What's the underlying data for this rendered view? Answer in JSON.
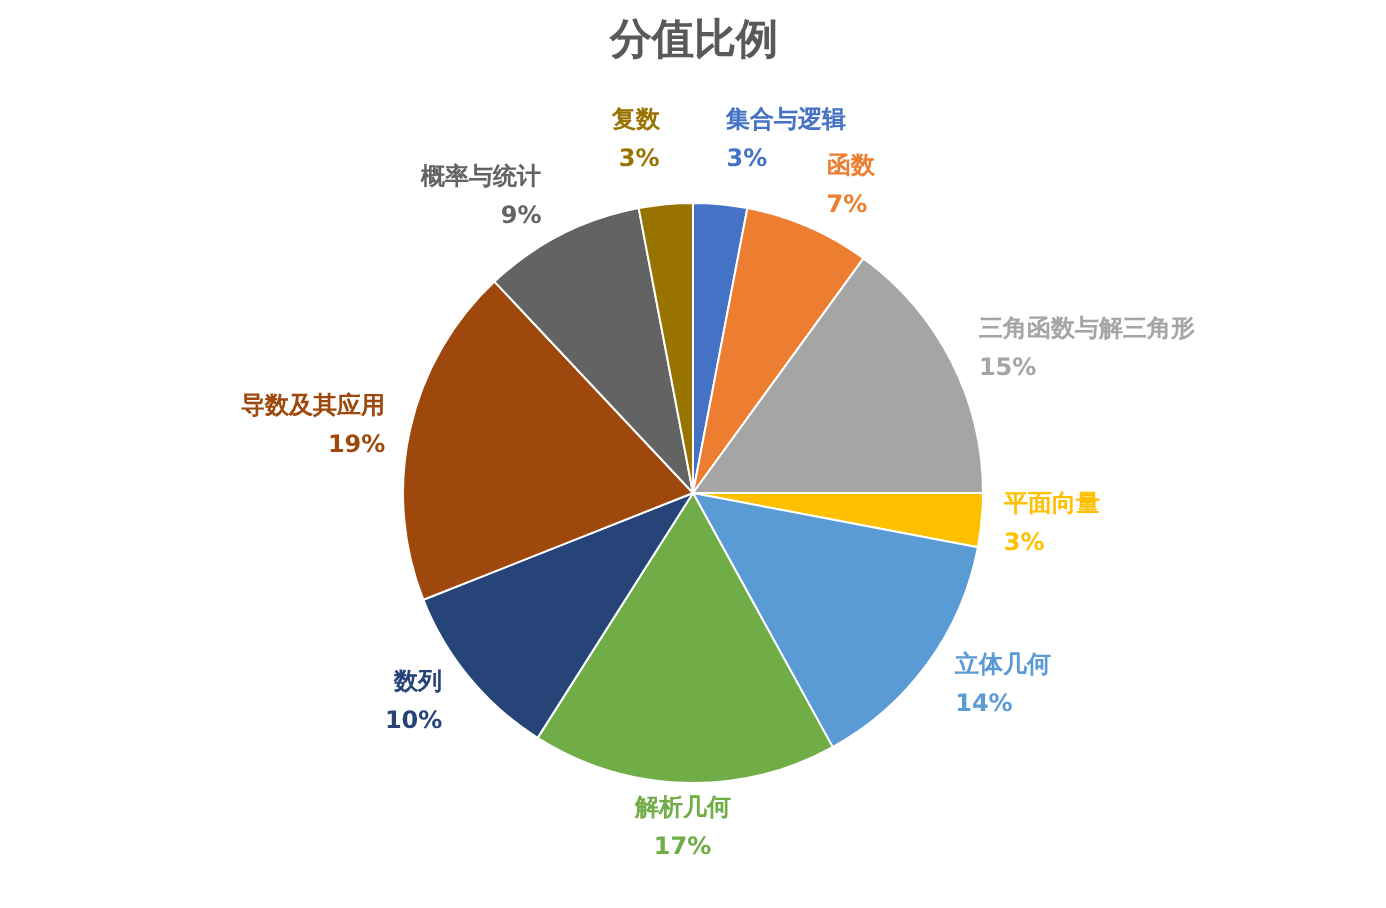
{
  "chart_data": {
    "type": "pie",
    "title": "分值比例",
    "categories": [
      "集合与逻辑",
      "函数",
      "三角函数与解三角形",
      "平面向量",
      "立体几何",
      "解析几何",
      "数列",
      "导数及其应用",
      "概率与统计",
      "复数"
    ],
    "values": [
      3,
      7,
      15,
      3,
      14,
      17,
      10,
      19,
      9,
      3
    ],
    "colors": [
      "#4472c4",
      "#ed7d31",
      "#a5a5a5",
      "#ffc000",
      "#5b9bd5",
      "#70ad47",
      "#264478",
      "#9e480e",
      "#636363",
      "#997300"
    ],
    "value_labels": [
      "3%",
      "7%",
      "15%",
      "3%",
      "14%",
      "17%",
      "10%",
      "19%",
      "9%",
      "3%"
    ]
  }
}
